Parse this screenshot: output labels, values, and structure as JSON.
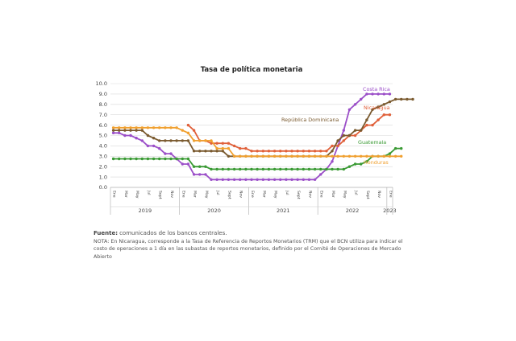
{
  "chart_data": {
    "type": "line",
    "title": "Tasa de política monetaria",
    "ylim": [
      0,
      10
    ],
    "yticks": [
      "0.0",
      "1.0",
      "2.0",
      "3.0",
      "4.0",
      "5.0",
      "6.0",
      "7.0",
      "8.0",
      "9.0",
      "10.0"
    ],
    "months": [
      "Ene",
      "Mar",
      "May",
      "Jul",
      "Sept",
      "Nov",
      "Ene",
      "Mar",
      "May",
      "Jul",
      "Sept",
      "Nov",
      "Ene",
      "Mar",
      "May",
      "Jul",
      "Sept",
      "Nov",
      "Ene",
      "Mar",
      "May",
      "Jul",
      "Sept",
      "Nov",
      "Ene"
    ],
    "years": [
      "2019",
      "2020",
      "2021",
      "2022",
      "2023"
    ],
    "grid": "horizontal",
    "series": [
      {
        "name": "Costa Rica",
        "color": "#9b4fc8",
        "start": 0,
        "values": [
          5.25,
          5.25,
          5.0,
          5.0,
          4.75,
          4.5,
          4.0,
          4.0,
          3.75,
          3.25,
          3.25,
          2.75,
          2.25,
          2.25,
          1.25,
          1.25,
          1.25,
          0.75,
          0.75,
          0.75,
          0.75,
          0.75,
          0.75,
          0.75,
          0.75,
          0.75,
          0.75,
          0.75,
          0.75,
          0.75,
          0.75,
          0.75,
          0.75,
          0.75,
          0.75,
          0.75,
          1.25,
          1.75,
          2.5,
          4.0,
          5.5,
          7.5,
          8.0,
          8.5,
          9.0,
          9.0,
          9.0,
          9.0,
          9.0
        ]
      },
      {
        "name": "Nicaragua",
        "color": "#e0603a",
        "start": 13,
        "values": [
          6.0,
          5.5,
          4.5,
          4.5,
          4.25,
          4.25,
          4.25,
          4.25,
          4.0,
          3.75,
          3.75,
          3.5,
          3.5,
          3.5,
          3.5,
          3.5,
          3.5,
          3.5,
          3.5,
          3.5,
          3.5,
          3.5,
          3.5,
          3.5,
          3.5,
          4.0,
          4.0,
          4.5,
          5.0,
          5.0,
          5.5,
          6.0,
          6.0,
          6.5,
          7.0,
          7.0
        ]
      },
      {
        "name": "República Dominicana",
        "color": "#7a5a2f",
        "start": 0,
        "values": [
          5.5,
          5.5,
          5.5,
          5.5,
          5.5,
          5.5,
          5.0,
          4.75,
          4.5,
          4.5,
          4.5,
          4.5,
          4.5,
          4.5,
          3.5,
          3.5,
          3.5,
          3.5,
          3.5,
          3.5,
          3.0,
          3.0,
          3.0,
          3.0,
          3.0,
          3.0,
          3.0,
          3.0,
          3.0,
          3.0,
          3.0,
          3.0,
          3.0,
          3.0,
          3.0,
          3.0,
          3.0,
          3.0,
          3.5,
          4.5,
          5.0,
          5.0,
          5.5,
          5.5,
          6.5,
          7.5,
          7.75,
          8.0,
          8.25,
          8.5,
          8.5,
          8.5,
          8.5
        ]
      },
      {
        "name": "Guatemala",
        "color": "#3a9a34",
        "start": 0,
        "values": [
          2.75,
          2.75,
          2.75,
          2.75,
          2.75,
          2.75,
          2.75,
          2.75,
          2.75,
          2.75,
          2.75,
          2.75,
          2.75,
          2.75,
          2.0,
          2.0,
          2.0,
          1.75,
          1.75,
          1.75,
          1.75,
          1.75,
          1.75,
          1.75,
          1.75,
          1.75,
          1.75,
          1.75,
          1.75,
          1.75,
          1.75,
          1.75,
          1.75,
          1.75,
          1.75,
          1.75,
          1.75,
          1.75,
          1.75,
          1.75,
          1.75,
          2.0,
          2.25,
          2.25,
          2.5,
          3.0,
          3.0,
          3.0,
          3.25,
          3.75,
          3.75
        ]
      },
      {
        "name": "Honduras",
        "color": "#f0a030",
        "start": 0,
        "values": [
          5.75,
          5.75,
          5.75,
          5.75,
          5.75,
          5.75,
          5.75,
          5.75,
          5.75,
          5.75,
          5.75,
          5.75,
          5.5,
          5.25,
          4.5,
          4.5,
          4.5,
          4.5,
          3.75,
          3.75,
          3.75,
          3.0,
          3.0,
          3.0,
          3.0,
          3.0,
          3.0,
          3.0,
          3.0,
          3.0,
          3.0,
          3.0,
          3.0,
          3.0,
          3.0,
          3.0,
          3.0,
          3.0,
          3.0,
          3.0,
          3.0,
          3.0,
          3.0,
          3.0,
          3.0,
          3.0,
          3.0,
          3.0,
          3.0,
          3.0,
          3.0
        ]
      }
    ]
  },
  "notes": {
    "source_label": "Fuente:",
    "source_text": "comunicados de los bancos centrales.",
    "note_text": "NOTA: En Nicaragua, corresponde a la Tasa de Referencia de Reportos Monetarios (TRM) que el BCN utiliza para indicar el costo de operaciones a 1 día en las subastas de reportos monetarios, definido por el Comité de Operaciones de Mercado Abierto"
  }
}
